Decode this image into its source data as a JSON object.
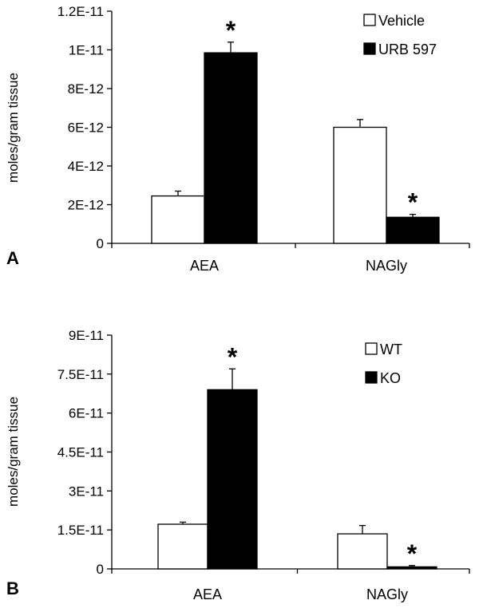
{
  "chart_data": [
    {
      "type": "bar",
      "panel_label": "A",
      "categories": [
        "AEA",
        "NAGly"
      ],
      "ylabel": "moles/gram tissue",
      "ylim": [
        0,
        1.2e-11
      ],
      "yticks": [
        0,
        2e-12,
        4e-12,
        6e-12,
        8e-12,
        1e-11,
        1.2e-11
      ],
      "ytick_labels": [
        "0",
        "2E-12",
        "4E-12",
        "6E-12",
        "8E-12",
        "1E-11",
        "1.2E-11"
      ],
      "series": [
        {
          "name": "Vehicle",
          "color": "#ffffff",
          "values": [
            2.45e-12,
            6e-12
          ],
          "errors": [
            2.5e-13,
            4e-13
          ],
          "stars": [
            false,
            false
          ]
        },
        {
          "name": "URB 597",
          "color": "#000000",
          "values": [
            9.85e-12,
            1.35e-12
          ],
          "errors": [
            5.5e-13,
            1.5e-13
          ],
          "stars": [
            true,
            true
          ]
        }
      ],
      "legend_position": "top-right",
      "star_symbol": "*"
    },
    {
      "type": "bar",
      "panel_label": "B",
      "categories": [
        "AEA",
        "NAGly"
      ],
      "ylabel": "moles/gram tissue",
      "ylim": [
        0,
        9e-11
      ],
      "yticks": [
        0,
        1.5e-11,
        3e-11,
        4.5e-11,
        6e-11,
        7.5e-11,
        9e-11
      ],
      "ytick_labels": [
        "0",
        "1.5E-11",
        "3E-11",
        "4.5E-11",
        "6E-11",
        "7.5E-11",
        "9E-11"
      ],
      "series": [
        {
          "name": "WT",
          "color": "#ffffff",
          "values": [
            1.72e-11,
            1.35e-11
          ],
          "errors": [
            8e-13,
            3.2e-12
          ],
          "stars": [
            false,
            false
          ]
        },
        {
          "name": "KO",
          "color": "#000000",
          "values": [
            6.9e-11,
            8e-13
          ],
          "errors": [
            8e-12,
            5e-13
          ],
          "stars": [
            true,
            true
          ]
        }
      ],
      "legend_position": "top-right",
      "star_symbol": "*"
    }
  ]
}
